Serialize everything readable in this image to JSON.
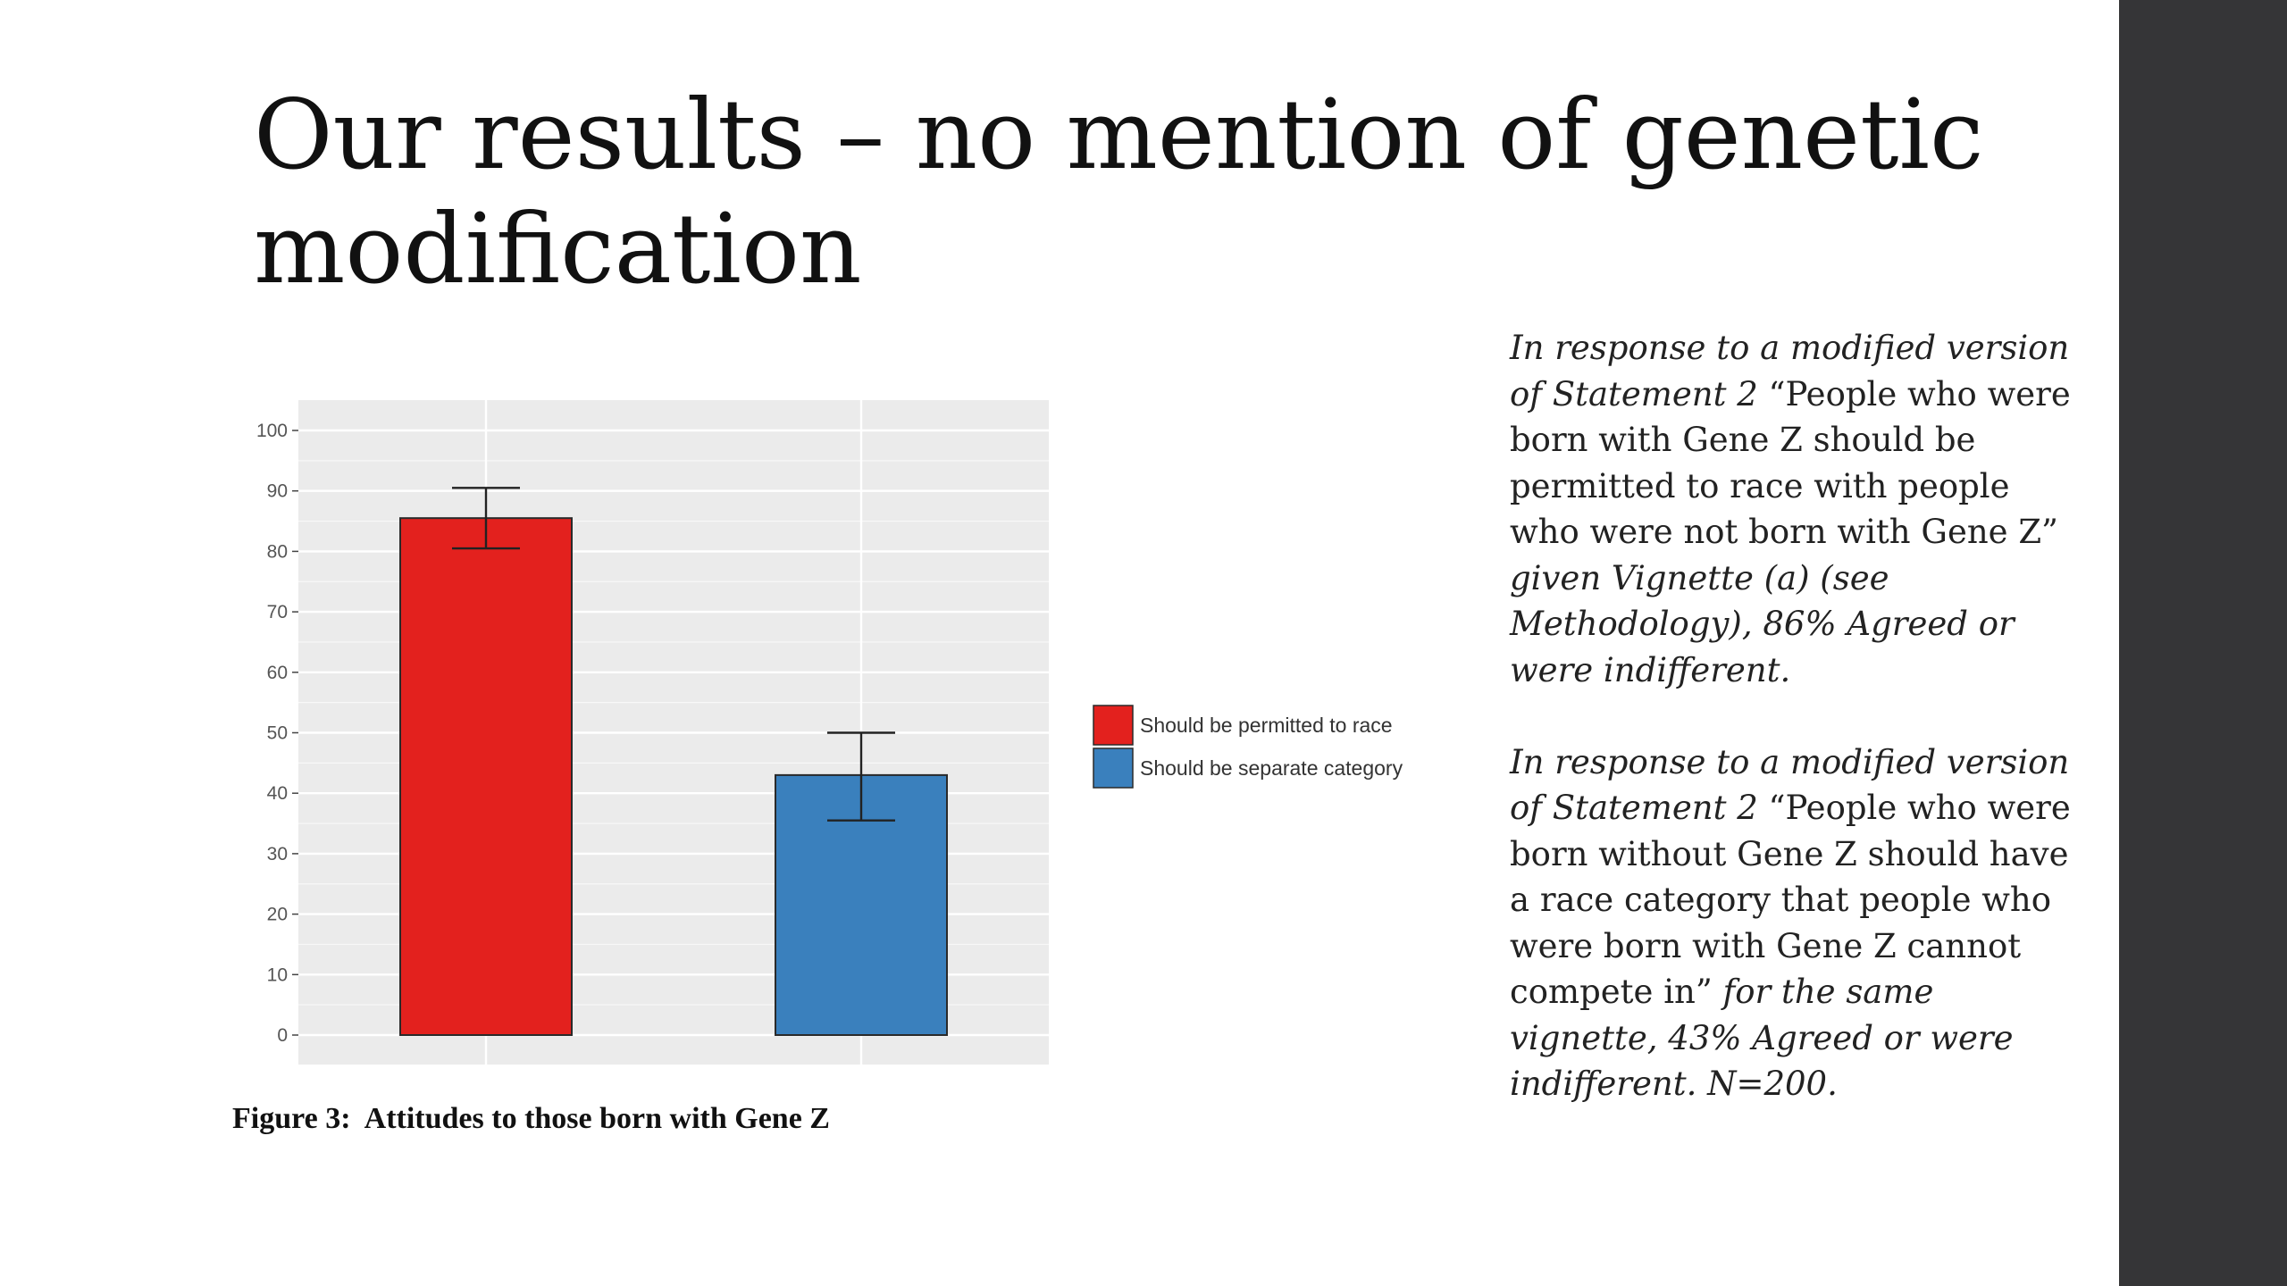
{
  "slide": {
    "title": "Our results – no mention of genetic modification",
    "caption": "Figure 3:  Attitudes to those born with Gene Z"
  },
  "side_text": {
    "p1": {
      "intro": "In response to a modified version of Statement 2",
      "quote": "“People who were born with Gene Z should be permitted to race with people who were not born with Gene Z”",
      "outro": "given Vignette (a) (see Methodology), 86% Agreed or were indifferent."
    },
    "p2": {
      "intro": "In response to a modified version of Statement 2",
      "quote": "“People who were born without Gene Z should have a race category that people who were born with Gene Z cannot compete in”",
      "outro": "for the same vignette, 43% Agreed or were indifferent. N=200."
    }
  },
  "colors": {
    "permitted": "#e3211e",
    "separate": "#3a80bd",
    "panel_bg": "#ebebeb",
    "grid": "#ffffff",
    "sidebar": "#353537"
  },
  "chart_data": {
    "type": "bar",
    "title": "",
    "xlabel": "",
    "ylabel": "",
    "ylim": [
      0,
      100
    ],
    "yticks": [
      0,
      10,
      20,
      30,
      40,
      50,
      60,
      70,
      80,
      90,
      100
    ],
    "grid": true,
    "legend_position": "right",
    "series": [
      {
        "name": "Should be permitted to race",
        "value": 85.5,
        "error_low": 80.5,
        "error_high": 90.5,
        "color": "#e3211e"
      },
      {
        "name": "Should be separate category",
        "value": 43,
        "error_low": 35.5,
        "error_high": 50,
        "color": "#3a80bd"
      }
    ]
  }
}
